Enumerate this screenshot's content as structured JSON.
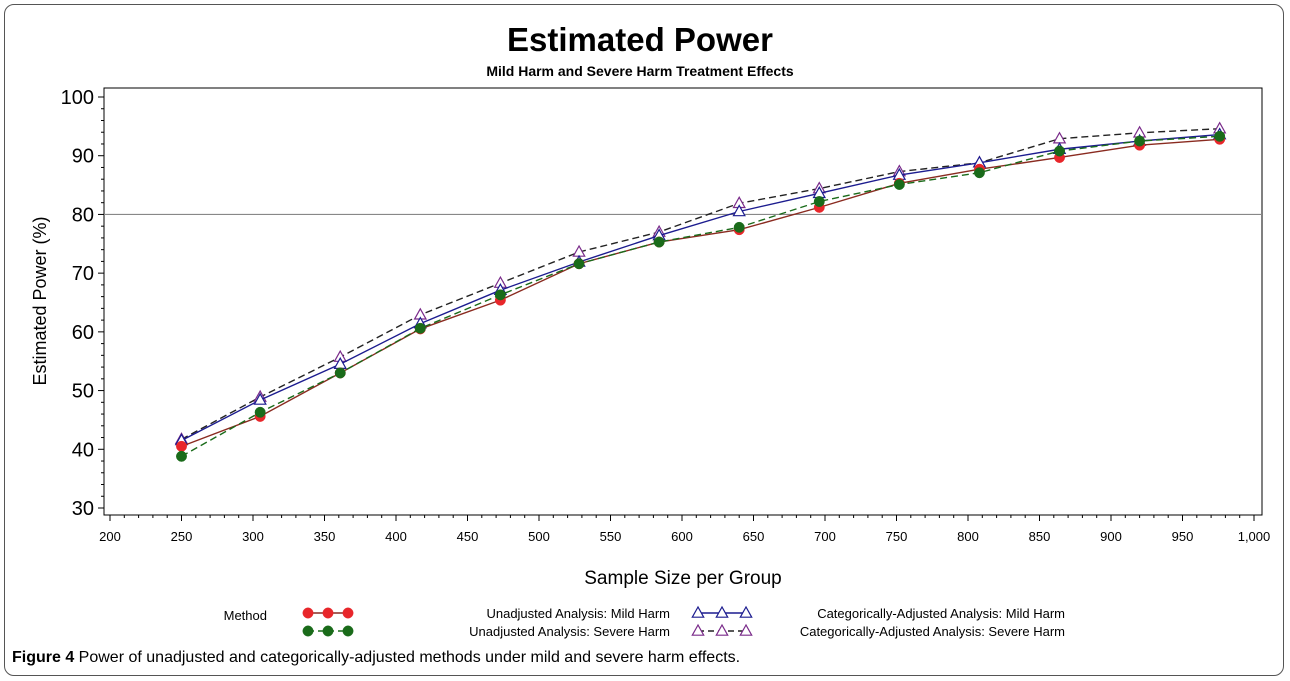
{
  "caption": {
    "label": "Figure 4",
    "text": " Power of unadjusted and categorically-adjusted methods under mild and severe harm effects."
  },
  "chart_data": {
    "type": "line",
    "title": "Estimated Power",
    "subtitle": "Mild Harm and Severe Harm Treatment Effects",
    "xlabel": "Sample Size per Group",
    "ylabel": "Estimated Power (%)",
    "xlim": [
      200,
      1000
    ],
    "ylim": [
      30,
      100
    ],
    "x_ticks": [
      "200",
      "250",
      "300",
      "350",
      "400",
      "450",
      "500",
      "550",
      "600",
      "650",
      "700",
      "750",
      "800",
      "850",
      "900",
      "950",
      "1,000"
    ],
    "y_ticks": [
      "30",
      "40",
      "50",
      "60",
      "70",
      "80",
      "90",
      "100"
    ],
    "reference_line": 80,
    "grid": false,
    "legend": {
      "title": "Method",
      "placement": "bottom"
    },
    "x": [
      250,
      305,
      361,
      417,
      473,
      528,
      584,
      640,
      696,
      752,
      808,
      864,
      920,
      976
    ],
    "series": [
      {
        "name": "Unadjusted Analysis: Mild Harm",
        "color": "#e8262a",
        "line_color": "#8a2b20",
        "line_style": "solid",
        "marker": "filled-circle",
        "values": [
          40.5,
          45.6,
          53.0,
          60.5,
          65.4,
          71.6,
          75.3,
          77.4,
          81.2,
          85.3,
          87.7,
          89.7,
          91.8,
          92.8
        ]
      },
      {
        "name": "Unadjusted Analysis: Severe Harm",
        "color": "#1a6b1a",
        "line_color": "#1a6b1a",
        "line_style": "dashed",
        "marker": "filled-circle",
        "values": [
          38.8,
          46.3,
          53.0,
          60.6,
          66.3,
          71.6,
          75.3,
          77.8,
          82.2,
          85.1,
          87.1,
          90.8,
          92.5,
          93.3
        ]
      },
      {
        "name": "Categorically-Adjusted Analysis: Mild Harm",
        "color": "#1c1c8f",
        "line_color": "#1c1c8f",
        "line_style": "solid",
        "marker": "open-triangle",
        "values": [
          41.5,
          48.4,
          54.5,
          61.4,
          67.1,
          71.9,
          76.4,
          80.5,
          83.6,
          86.7,
          88.8,
          91.1,
          92.5,
          93.6
        ]
      },
      {
        "name": "Categorically-Adjusted Analysis: Severe Harm",
        "color": "#7a2b8a",
        "line_color": "#222222",
        "line_style": "dashed",
        "marker": "open-triangle",
        "values": [
          41.7,
          48.9,
          55.7,
          62.9,
          68.3,
          73.6,
          77.0,
          81.9,
          84.4,
          87.3,
          88.8,
          92.9,
          93.9,
          94.6
        ]
      }
    ]
  }
}
